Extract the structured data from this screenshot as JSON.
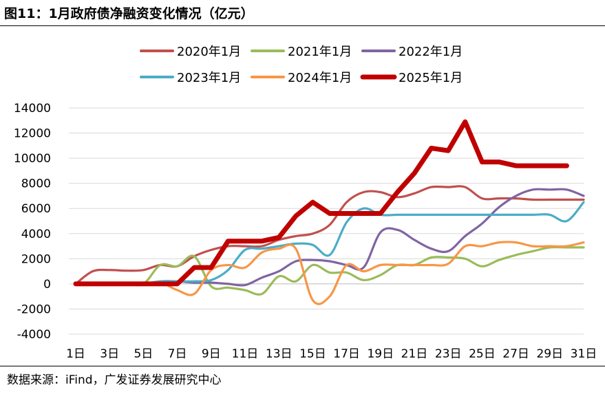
{
  "page": {
    "title": "图11：1月政府债净融资变化情况（亿元）",
    "source": "数据来源：iFind，广发证券发展研究中心"
  },
  "chart_data": {
    "type": "line",
    "title": "1月政府债净融资变化情况（亿元）",
    "xlabel": "",
    "ylabel": "",
    "ylim": [
      -4000,
      14000
    ],
    "yticks": [
      -4000,
      -2000,
      0,
      2000,
      4000,
      6000,
      8000,
      10000,
      12000,
      14000
    ],
    "y_tick_labels": [
      "-4000",
      "-2000",
      "0",
      "2000",
      "4000",
      "6000",
      "8000",
      "10000",
      "12000",
      "14000"
    ],
    "x": [
      1,
      2,
      3,
      4,
      5,
      6,
      7,
      8,
      9,
      10,
      11,
      12,
      13,
      14,
      15,
      16,
      17,
      18,
      19,
      20,
      21,
      22,
      23,
      24,
      25,
      26,
      27,
      28,
      29,
      30,
      31
    ],
    "x_tick_labels": [
      "1日",
      "3日",
      "5日",
      "7日",
      "9日",
      "11日",
      "13日",
      "15日",
      "17日",
      "19日",
      "21日",
      "23日",
      "25日",
      "27日",
      "29日",
      "31日"
    ],
    "grid": "horizontal",
    "legend": "top",
    "series": [
      {
        "name": "2020年1月",
        "color": "#c0504d",
        "values": [
          0,
          1000,
          1100,
          1050,
          1100,
          1500,
          1400,
          2200,
          2700,
          3000,
          3000,
          3000,
          3500,
          3800,
          4000,
          4700,
          6500,
          7300,
          7300,
          6900,
          7200,
          7700,
          7700,
          7700,
          6800,
          6800,
          6800,
          6700,
          6700,
          6700,
          6700
        ]
      },
      {
        "name": "2021年1月",
        "color": "#9bbb59",
        "values": [
          0,
          0,
          0,
          0,
          0,
          1500,
          1400,
          2200,
          -200,
          -300,
          -500,
          -800,
          600,
          200,
          1500,
          900,
          900,
          300,
          700,
          1500,
          1500,
          2100,
          2100,
          2000,
          1400,
          1900,
          2300,
          2600,
          2900,
          2900,
          2900
        ]
      },
      {
        "name": "2022年1月",
        "color": "#8064a2",
        "values": [
          0,
          0,
          0,
          0,
          0,
          200,
          200,
          100,
          100,
          0,
          -100,
          500,
          1000,
          1800,
          1900,
          1800,
          1500,
          1300,
          4100,
          4300,
          3500,
          2800,
          2600,
          3800,
          4800,
          6100,
          7000,
          7500,
          7500,
          7500,
          7000
        ]
      },
      {
        "name": "2023年1月",
        "color": "#4bacc6",
        "values": [
          0,
          0,
          0,
          0,
          0,
          200,
          200,
          200,
          300,
          1100,
          2700,
          2800,
          3000,
          3200,
          3100,
          2300,
          4900,
          6000,
          5500,
          5500,
          5500,
          5500,
          5500,
          5500,
          5500,
          5500,
          5500,
          5500,
          5500,
          5000,
          6500
        ]
      },
      {
        "name": "2024年1月",
        "color": "#f79646",
        "values": [
          0,
          0,
          0,
          0,
          0,
          100,
          -500,
          -800,
          1100,
          1500,
          1300,
          2500,
          2800,
          2800,
          -1300,
          -1000,
          1500,
          1000,
          1500,
          1500,
          1500,
          1500,
          1600,
          3000,
          3000,
          3300,
          3300,
          3000,
          3000,
          3000,
          3300
        ]
      },
      {
        "name": "2025年1月",
        "color": "#c00000",
        "values": [
          0,
          0,
          0,
          0,
          0,
          0,
          0,
          1300,
          1300,
          3400,
          3400,
          3400,
          3700,
          5400,
          6500,
          5600,
          5600,
          5600,
          5600,
          7300,
          8800,
          10800,
          10600,
          12900,
          9700,
          9700,
          9400,
          9400,
          9400,
          9400,
          null
        ]
      }
    ]
  }
}
